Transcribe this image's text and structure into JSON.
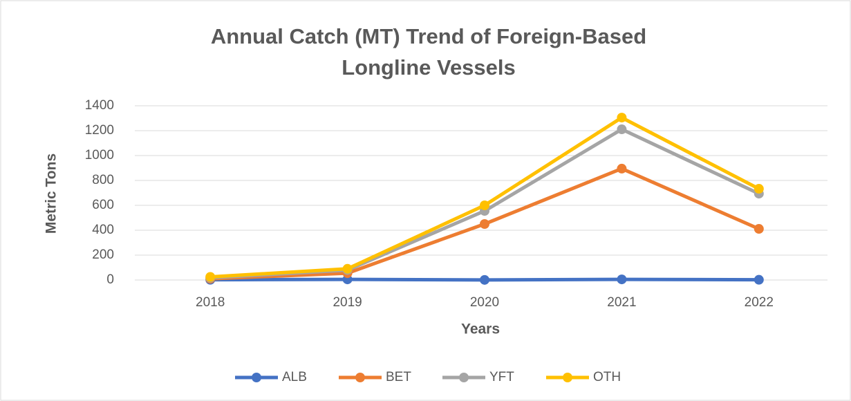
{
  "chart_data": {
    "type": "line",
    "title": [
      "Annual Catch (MT) Trend of Foreign-Based",
      "Longline Vessels"
    ],
    "x_label": "Years",
    "y_label": "Metric Tons",
    "categories": [
      "2018",
      "2019",
      "2020",
      "2021",
      "2022"
    ],
    "series": [
      {
        "name": "ALB",
        "color": "#4472c4",
        "values": [
          2,
          5,
          1,
          5,
          2
        ]
      },
      {
        "name": "BET",
        "color": "#ed7d31",
        "values": [
          10,
          55,
          450,
          895,
          411
        ]
      },
      {
        "name": "YFT",
        "color": "#a5a5a5",
        "values": [
          18,
          80,
          555,
          1211,
          694
        ]
      },
      {
        "name": "OTH",
        "color": "#ffc000",
        "values": [
          25,
          90,
          600,
          1305,
          733
        ]
      }
    ],
    "ylim": [
      0,
      1400
    ],
    "yticks": [
      0,
      200,
      400,
      600,
      800,
      1000,
      1200,
      1400
    ],
    "grid": true,
    "legend": "bottom"
  }
}
